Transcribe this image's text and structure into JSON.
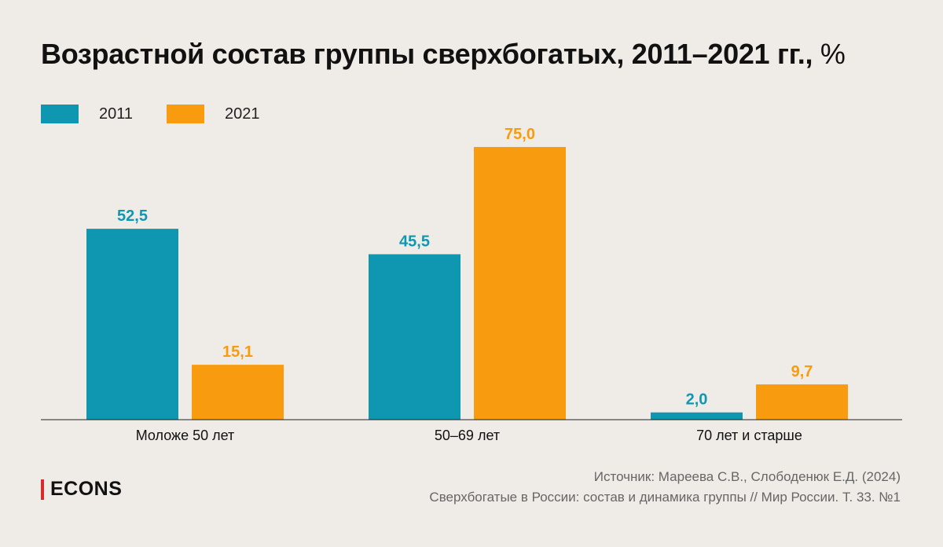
{
  "title": "Возрастной состав группы сверхбогатых, 2011–2021 гг.,",
  "title_unit": "%",
  "colors": {
    "s2011": "#0f97b2",
    "s2021": "#f89b0e",
    "axis": "#222222",
    "background": "#efece7"
  },
  "chart_data": {
    "type": "bar",
    "title": "Возрастной состав группы сверхбогатых, 2011–2021 гг., %",
    "categories": [
      "Моложе 50 лет",
      "50–69 лет",
      "70 лет и старше"
    ],
    "series": [
      {
        "name": "2011",
        "values": [
          52.5,
          45.5,
          2.0
        ],
        "labels": [
          "52,5",
          "45,5",
          "2,0"
        ]
      },
      {
        "name": "2021",
        "values": [
          15.1,
          75.0,
          9.7
        ],
        "labels": [
          "15,1",
          "75,0",
          "9,7"
        ]
      }
    ],
    "ylim": [
      0,
      75
    ],
    "xlabel": "",
    "ylabel": "",
    "legend_position": "top-left",
    "grid": false
  },
  "source": {
    "line1": "Источник: Мареева С.В., Слободенюк Е.Д. (2024)",
    "line2": "Сверхбогатые в России: состав и динамика группы // Мир России. Т. 33. №1"
  },
  "logo": "ECONS"
}
